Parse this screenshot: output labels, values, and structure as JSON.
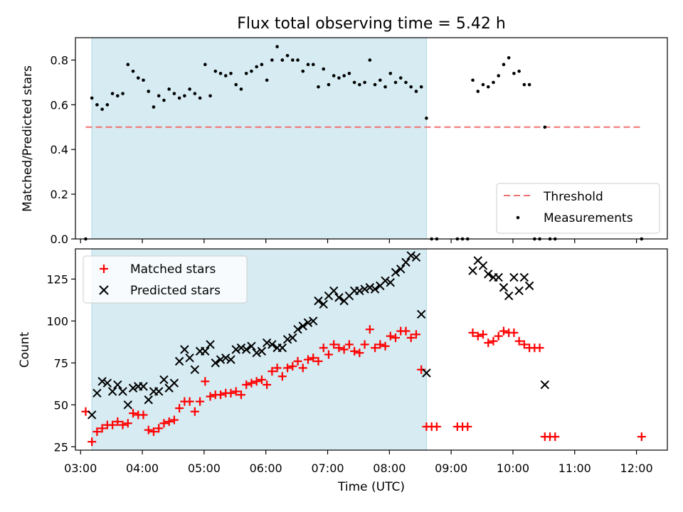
{
  "chart_data": [
    {
      "type": "scatter",
      "title": "Flux total observing time = 5.42 h",
      "ylabel": "Matched/Predicted stars",
      "xlabel": "",
      "xlim": [
        "02:55",
        "12:30"
      ],
      "ylim": [
        0,
        0.9
      ],
      "yticks": [
        "0.0",
        "0.2",
        "0.4",
        "0.6",
        "0.8"
      ],
      "shaded_span": [
        "03:11",
        "08:36"
      ],
      "threshold": {
        "name": "Threshold",
        "value": 0.5,
        "x_range": [
          "03:05",
          "12:05"
        ],
        "color": "#f07070"
      },
      "legend_position": "lower-right",
      "series": [
        {
          "name": "Measurements",
          "color": "#000000",
          "points": [
            [
              "03:05",
              0.0
            ],
            [
              "03:11",
              0.63
            ],
            [
              "03:16",
              0.6
            ],
            [
              "03:21",
              0.58
            ],
            [
              "03:26",
              0.6
            ],
            [
              "03:31",
              0.65
            ],
            [
              "03:36",
              0.64
            ],
            [
              "03:41",
              0.65
            ],
            [
              "03:46",
              0.78
            ],
            [
              "03:51",
              0.75
            ],
            [
              "03:56",
              0.72
            ],
            [
              "04:01",
              0.71
            ],
            [
              "04:06",
              0.66
            ],
            [
              "04:11",
              0.59
            ],
            [
              "04:16",
              0.64
            ],
            [
              "04:21",
              0.62
            ],
            [
              "04:26",
              0.67
            ],
            [
              "04:31",
              0.65
            ],
            [
              "04:36",
              0.63
            ],
            [
              "04:41",
              0.64
            ],
            [
              "04:46",
              0.67
            ],
            [
              "04:51",
              0.65
            ],
            [
              "04:56",
              0.63
            ],
            [
              "05:01",
              0.78
            ],
            [
              "05:06",
              0.64
            ],
            [
              "05:11",
              0.75
            ],
            [
              "05:16",
              0.74
            ],
            [
              "05:21",
              0.73
            ],
            [
              "05:26",
              0.74
            ],
            [
              "05:31",
              0.69
            ],
            [
              "05:36",
              0.67
            ],
            [
              "05:41",
              0.74
            ],
            [
              "05:46",
              0.75
            ],
            [
              "05:51",
              0.77
            ],
            [
              "05:56",
              0.78
            ],
            [
              "06:01",
              0.71
            ],
            [
              "06:06",
              0.8
            ],
            [
              "06:11",
              0.86
            ],
            [
              "06:16",
              0.8
            ],
            [
              "06:21",
              0.82
            ],
            [
              "06:26",
              0.8
            ],
            [
              "06:31",
              0.8
            ],
            [
              "06:36",
              0.75
            ],
            [
              "06:41",
              0.78
            ],
            [
              "06:46",
              0.78
            ],
            [
              "06:51",
              0.68
            ],
            [
              "06:56",
              0.76
            ],
            [
              "07:01",
              0.69
            ],
            [
              "07:06",
              0.73
            ],
            [
              "07:11",
              0.72
            ],
            [
              "07:16",
              0.73
            ],
            [
              "07:21",
              0.74
            ],
            [
              "07:26",
              0.7
            ],
            [
              "07:31",
              0.69
            ],
            [
              "07:36",
              0.7
            ],
            [
              "07:41",
              0.8
            ],
            [
              "07:46",
              0.69
            ],
            [
              "07:51",
              0.71
            ],
            [
              "07:56",
              0.68
            ],
            [
              "08:01",
              0.74
            ],
            [
              "08:06",
              0.7
            ],
            [
              "08:11",
              0.72
            ],
            [
              "08:16",
              0.7
            ],
            [
              "08:21",
              0.68
            ],
            [
              "08:26",
              0.66
            ],
            [
              "08:31",
              0.68
            ],
            [
              "08:36",
              0.54
            ],
            [
              "08:41",
              0.0
            ],
            [
              "08:46",
              0.0
            ],
            [
              "09:06",
              0.0
            ],
            [
              "09:11",
              0.0
            ],
            [
              "09:16",
              0.0
            ],
            [
              "09:21",
              0.71
            ],
            [
              "09:26",
              0.66
            ],
            [
              "09:31",
              0.69
            ],
            [
              "09:36",
              0.68
            ],
            [
              "09:41",
              0.7
            ],
            [
              "09:46",
              0.73
            ],
            [
              "09:51",
              0.78
            ],
            [
              "09:56",
              0.81
            ],
            [
              "10:01",
              0.74
            ],
            [
              "10:06",
              0.75
            ],
            [
              "10:11",
              0.69
            ],
            [
              "10:16",
              0.69
            ],
            [
              "10:21",
              0.0
            ],
            [
              "10:26",
              0.0
            ],
            [
              "10:31",
              0.5
            ],
            [
              "10:36",
              0.0
            ],
            [
              "10:41",
              0.0
            ],
            [
              "12:05",
              0.0
            ]
          ]
        }
      ]
    },
    {
      "type": "scatter",
      "title": "",
      "xlabel": "Time (UTC)",
      "ylabel": "Count",
      "xlim": [
        "02:55",
        "12:30"
      ],
      "ylim": [
        23,
        143
      ],
      "xticks": [
        "03:00",
        "04:00",
        "05:00",
        "06:00",
        "07:00",
        "08:00",
        "09:00",
        "10:00",
        "11:00",
        "12:00"
      ],
      "yticks": [
        "25",
        "50",
        "75",
        "100",
        "125"
      ],
      "shaded_span": [
        "03:11",
        "08:36"
      ],
      "legend_position": "upper-left",
      "series": [
        {
          "name": "Matched stars",
          "marker": "plus",
          "color": "#ff0000",
          "points": [
            [
              "03:05",
              46
            ],
            [
              "03:11",
              28
            ],
            [
              "03:16",
              34
            ],
            [
              "03:21",
              36
            ],
            [
              "03:26",
              38
            ],
            [
              "03:31",
              38
            ],
            [
              "03:36",
              40
            ],
            [
              "03:41",
              38
            ],
            [
              "03:46",
              39
            ],
            [
              "03:51",
              45
            ],
            [
              "03:56",
              44
            ],
            [
              "04:01",
              44
            ],
            [
              "04:06",
              35
            ],
            [
              "04:11",
              34
            ],
            [
              "04:16",
              36
            ],
            [
              "04:21",
              39
            ],
            [
              "04:26",
              40
            ],
            [
              "04:31",
              41
            ],
            [
              "04:36",
              48
            ],
            [
              "04:41",
              52
            ],
            [
              "04:46",
              52
            ],
            [
              "04:51",
              46
            ],
            [
              "04:56",
              52
            ],
            [
              "05:01",
              64
            ],
            [
              "05:06",
              55
            ],
            [
              "05:11",
              56
            ],
            [
              "05:16",
              56
            ],
            [
              "05:21",
              57
            ],
            [
              "05:26",
              57
            ],
            [
              "05:31",
              58
            ],
            [
              "05:36",
              56
            ],
            [
              "05:41",
              62
            ],
            [
              "05:46",
              63
            ],
            [
              "05:51",
              64
            ],
            [
              "05:56",
              65
            ],
            [
              "06:01",
              62
            ],
            [
              "06:06",
              70
            ],
            [
              "06:11",
              72
            ],
            [
              "06:16",
              67
            ],
            [
              "06:21",
              72
            ],
            [
              "06:26",
              73
            ],
            [
              "06:31",
              76
            ],
            [
              "06:36",
              72
            ],
            [
              "06:41",
              77
            ],
            [
              "06:46",
              78
            ],
            [
              "06:51",
              76
            ],
            [
              "06:56",
              84
            ],
            [
              "07:01",
              80
            ],
            [
              "07:06",
              86
            ],
            [
              "07:11",
              84
            ],
            [
              "07:16",
              83
            ],
            [
              "07:21",
              86
            ],
            [
              "07:26",
              82
            ],
            [
              "07:31",
              81
            ],
            [
              "07:36",
              86
            ],
            [
              "07:41",
              95
            ],
            [
              "07:46",
              84
            ],
            [
              "07:51",
              86
            ],
            [
              "07:56",
              85
            ],
            [
              "08:01",
              91
            ],
            [
              "08:06",
              90
            ],
            [
              "08:11",
              94
            ],
            [
              "08:16",
              94
            ],
            [
              "08:21",
              90
            ],
            [
              "08:26",
              92
            ],
            [
              "08:31",
              71
            ],
            [
              "08:36",
              37
            ],
            [
              "08:41",
              37
            ],
            [
              "08:46",
              37
            ],
            [
              "09:06",
              37
            ],
            [
              "09:11",
              37
            ],
            [
              "09:16",
              37
            ],
            [
              "09:21",
              93
            ],
            [
              "09:26",
              91
            ],
            [
              "09:31",
              92
            ],
            [
              "09:36",
              87
            ],
            [
              "09:41",
              88
            ],
            [
              "09:46",
              91
            ],
            [
              "09:51",
              94
            ],
            [
              "09:56",
              93
            ],
            [
              "10:01",
              93
            ],
            [
              "10:06",
              88
            ],
            [
              "10:11",
              86
            ],
            [
              "10:16",
              84
            ],
            [
              "10:21",
              84
            ],
            [
              "10:26",
              84
            ],
            [
              "10:31",
              31
            ],
            [
              "10:36",
              31
            ],
            [
              "10:41",
              31
            ],
            [
              "12:05",
              31
            ]
          ]
        },
        {
          "name": "Predicted stars",
          "marker": "x",
          "color": "#000000",
          "points": [
            [
              "03:11",
              44
            ],
            [
              "03:16",
              57
            ],
            [
              "03:21",
              64
            ],
            [
              "03:26",
              63
            ],
            [
              "03:31",
              58
            ],
            [
              "03:36",
              62
            ],
            [
              "03:41",
              58
            ],
            [
              "03:46",
              50
            ],
            [
              "03:51",
              60
            ],
            [
              "03:56",
              61
            ],
            [
              "04:01",
              61
            ],
            [
              "04:06",
              53
            ],
            [
              "04:11",
              58
            ],
            [
              "04:16",
              58
            ],
            [
              "04:21",
              65
            ],
            [
              "04:26",
              60
            ],
            [
              "04:31",
              63
            ],
            [
              "04:36",
              76
            ],
            [
              "04:41",
              83
            ],
            [
              "04:46",
              78
            ],
            [
              "04:51",
              71
            ],
            [
              "04:56",
              82
            ],
            [
              "05:01",
              82
            ],
            [
              "05:06",
              86
            ],
            [
              "05:11",
              75
            ],
            [
              "05:16",
              77
            ],
            [
              "05:21",
              78
            ],
            [
              "05:26",
              77
            ],
            [
              "05:31",
              83
            ],
            [
              "05:36",
              84
            ],
            [
              "05:41",
              83
            ],
            [
              "05:46",
              85
            ],
            [
              "05:51",
              81
            ],
            [
              "05:56",
              82
            ],
            [
              "06:01",
              87
            ],
            [
              "06:06",
              86
            ],
            [
              "06:11",
              84
            ],
            [
              "06:16",
              84
            ],
            [
              "06:21",
              89
            ],
            [
              "06:26",
              90
            ],
            [
              "06:31",
              95
            ],
            [
              "06:36",
              97
            ],
            [
              "06:41",
              99
            ],
            [
              "06:46",
              100
            ],
            [
              "06:51",
              112
            ],
            [
              "06:56",
              110
            ],
            [
              "07:01",
              115
            ],
            [
              "07:06",
              118
            ],
            [
              "07:11",
              114
            ],
            [
              "07:16",
              112
            ],
            [
              "07:21",
              115
            ],
            [
              "07:26",
              118
            ],
            [
              "07:31",
              118
            ],
            [
              "07:36",
              119
            ],
            [
              "07:41",
              120
            ],
            [
              "07:46",
              119
            ],
            [
              "07:51",
              121
            ],
            [
              "07:56",
              124
            ],
            [
              "08:01",
              123
            ],
            [
              "08:06",
              129
            ],
            [
              "08:11",
              131
            ],
            [
              "08:16",
              135
            ],
            [
              "08:21",
              139
            ],
            [
              "08:26",
              138
            ],
            [
              "08:31",
              104
            ],
            [
              "08:36",
              69
            ],
            [
              "09:21",
              130
            ],
            [
              "09:26",
              136
            ],
            [
              "09:31",
              133
            ],
            [
              "09:36",
              128
            ],
            [
              "09:41",
              126
            ],
            [
              "09:46",
              126
            ],
            [
              "09:51",
              120
            ],
            [
              "09:56",
              115
            ],
            [
              "10:01",
              126
            ],
            [
              "10:06",
              118
            ],
            [
              "10:11",
              126
            ],
            [
              "10:16",
              121
            ],
            [
              "10:31",
              62
            ]
          ]
        }
      ]
    }
  ]
}
